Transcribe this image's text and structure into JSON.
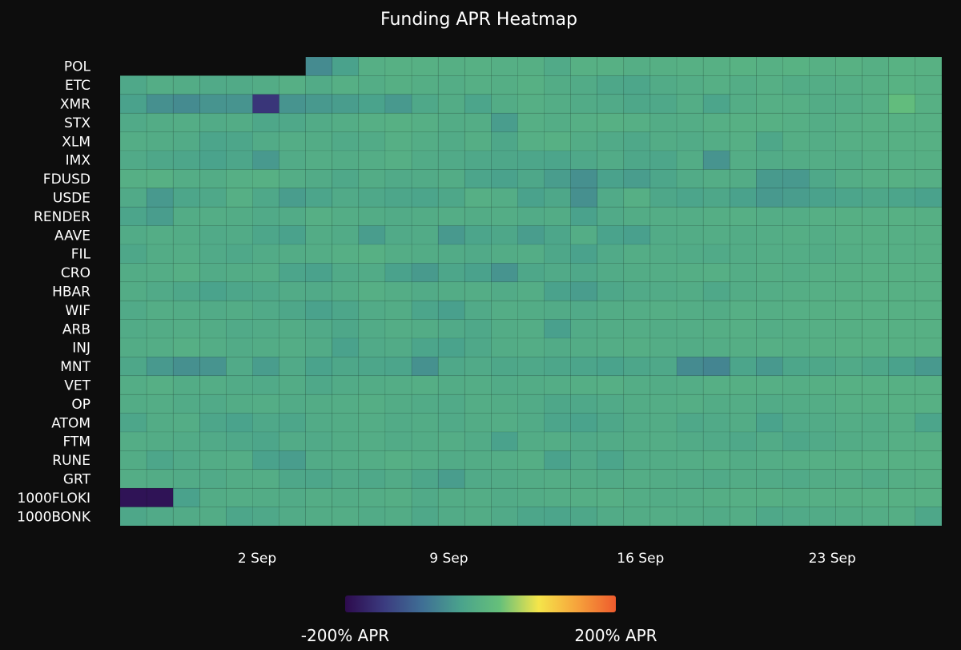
{
  "chart_data": {
    "type": "heatmap",
    "title": "Funding APR Heatmap",
    "x_tick_labels": [
      "2 Sep",
      "9 Sep",
      "16 Sep",
      "23 Sep"
    ],
    "x_start": "2024-08-28",
    "x_end": "2024-09-27",
    "x_ticks": [
      "2024-09-02",
      "2024-09-09",
      "2024-09-16",
      "2024-09-23"
    ],
    "rows": [
      "POL",
      "ETC",
      "XMR",
      "STX",
      "XLM",
      "IMX",
      "FDUSD",
      "USDE",
      "RENDER",
      "AAVE",
      "FIL",
      "CRO",
      "HBAR",
      "WIF",
      "ARB",
      "INJ",
      "MNT",
      "VET",
      "OP",
      "ATOM",
      "FTM",
      "RUNE",
      "GRT",
      "1000FLOKI",
      "1000BONK"
    ],
    "value_range": [
      -200,
      200
    ],
    "colorscale": [
      "#2d0b4d",
      "#3b3b7f",
      "#3f6f95",
      "#4aa38c",
      "#66c07a",
      "#f5e54a",
      "#f6a33c",
      "#ee5b2d"
    ],
    "colorbar_labels": {
      "min": "-200% APR",
      "max": "200% APR"
    },
    "values": [
      [
        null,
        null,
        null,
        null,
        null,
        null,
        null,
        -55,
        -30,
        -5,
        -3,
        -2,
        -4,
        -3,
        -5,
        -4,
        -15,
        -3,
        -2,
        -6,
        -4,
        -3,
        -2,
        0,
        -3,
        0,
        -2,
        -1,
        -4,
        0,
        -1
      ],
      [
        -18,
        -8,
        -10,
        -15,
        -14,
        -10,
        -5,
        -12,
        -5,
        -8,
        -4,
        -6,
        -8,
        -5,
        -6,
        -3,
        -10,
        -12,
        -20,
        -22,
        -12,
        -8,
        -5,
        -8,
        -5,
        -10,
        -8,
        -6,
        -4,
        0,
        -3
      ],
      [
        -30,
        -50,
        -55,
        -45,
        -45,
        -150,
        -45,
        -40,
        -35,
        -28,
        -40,
        -18,
        -10,
        -25,
        -10,
        -5,
        -8,
        -12,
        -15,
        -20,
        -18,
        -8,
        -25,
        -8,
        -5,
        -5,
        -10,
        -8,
        -5,
        20,
        -3
      ],
      [
        -15,
        -10,
        -8,
        -12,
        -10,
        -20,
        -18,
        -12,
        -8,
        -5,
        -3,
        -5,
        -10,
        -8,
        -35,
        -5,
        -8,
        -5,
        -3,
        -5,
        -10,
        -8,
        -5,
        -3,
        -3,
        -5,
        -8,
        -5,
        -3,
        -2,
        -2
      ],
      [
        -8,
        -10,
        -12,
        -25,
        -22,
        -12,
        -8,
        -10,
        -15,
        -12,
        -5,
        -8,
        -12,
        -6,
        -20,
        -5,
        -3,
        -10,
        -15,
        -18,
        -10,
        -12,
        -8,
        -5,
        -20,
        -6,
        -8,
        -5,
        -4,
        -3,
        -3
      ],
      [
        -15,
        -20,
        -22,
        -28,
        -22,
        -40,
        -12,
        -8,
        -10,
        -8,
        -5,
        -12,
        -15,
        -18,
        -20,
        -22,
        -25,
        -18,
        -12,
        -20,
        -22,
        -10,
        -45,
        -8,
        -12,
        -10,
        -8,
        -10,
        -6,
        -5,
        -4
      ],
      [
        -5,
        -3,
        -8,
        -10,
        -5,
        -3,
        -8,
        -12,
        -18,
        -10,
        -15,
        -12,
        -10,
        -25,
        -30,
        -20,
        -35,
        -50,
        -30,
        -35,
        -22,
        -12,
        -8,
        -10,
        -38,
        -40,
        -18,
        -8,
        -5,
        -3,
        -5
      ],
      [
        -15,
        -40,
        -22,
        -18,
        -5,
        -18,
        -35,
        -25,
        -15,
        -18,
        -22,
        -25,
        -20,
        -5,
        -8,
        -30,
        -20,
        -50,
        -15,
        -5,
        -20,
        -25,
        -20,
        -30,
        -40,
        -35,
        -30,
        -25,
        -20,
        -25,
        -30
      ],
      [
        -25,
        -35,
        -10,
        -8,
        -10,
        -15,
        -12,
        -5,
        -8,
        -10,
        -12,
        -10,
        -8,
        -10,
        -8,
        -12,
        -10,
        -30,
        -15,
        -10,
        -8,
        -8,
        -6,
        -5,
        -8,
        -8,
        -5,
        -4,
        -5,
        -3,
        -4
      ],
      [
        -12,
        -8,
        -10,
        -15,
        -12,
        -22,
        -30,
        -10,
        -12,
        -35,
        -15,
        -12,
        -40,
        -25,
        -20,
        -35,
        -22,
        -8,
        -28,
        -32,
        -12,
        -10,
        -8,
        -10,
        -8,
        -6,
        -8,
        -5,
        -4,
        -5,
        -4
      ],
      [
        -20,
        -10,
        -8,
        -15,
        -18,
        -12,
        -10,
        -8,
        -5,
        -3,
        -8,
        -10,
        -12,
        -15,
        -10,
        -8,
        -20,
        -30,
        -15,
        -8,
        -10,
        -12,
        -15,
        -10,
        -8,
        -8,
        -10,
        -6,
        -5,
        -5,
        -4
      ],
      [
        -10,
        -8,
        -5,
        -12,
        -10,
        -8,
        -25,
        -30,
        -15,
        -12,
        -30,
        -38,
        -22,
        -30,
        -45,
        -20,
        -15,
        -18,
        -12,
        -10,
        -8,
        -6,
        -5,
        -8,
        -6,
        -8,
        -5,
        -4,
        -3,
        -3,
        -3
      ],
      [
        -10,
        -15,
        -20,
        -28,
        -22,
        -18,
        -12,
        -15,
        -10,
        -5,
        -8,
        -12,
        -10,
        -8,
        -12,
        -8,
        -30,
        -35,
        -20,
        -15,
        -12,
        -10,
        -18,
        -10,
        -8,
        -6,
        -5,
        -4,
        -3,
        -2,
        -2
      ],
      [
        -15,
        -8,
        -10,
        -12,
        -10,
        -15,
        -20,
        -30,
        -22,
        -12,
        -10,
        -25,
        -32,
        -15,
        -8,
        -10,
        -12,
        -15,
        -10,
        -8,
        -6,
        -8,
        -10,
        -5,
        -6,
        -5,
        -4,
        -3,
        -3,
        -2,
        -2
      ],
      [
        -12,
        -10,
        -8,
        -10,
        -15,
        -12,
        -10,
        -15,
        -20,
        -12,
        -8,
        -10,
        -15,
        -18,
        -10,
        -8,
        -32,
        -12,
        -10,
        -8,
        -10,
        -8,
        -6,
        -5,
        -8,
        -6,
        -5,
        -4,
        -3,
        -3,
        -2
      ],
      [
        -10,
        -8,
        -5,
        -8,
        -12,
        -10,
        -8,
        -12,
        -30,
        -15,
        -12,
        -25,
        -28,
        -18,
        -10,
        -8,
        -12,
        -10,
        -8,
        -6,
        -8,
        -10,
        -8,
        -6,
        -5,
        -6,
        -4,
        -3,
        -2,
        -2,
        -2
      ],
      [
        -20,
        -40,
        -50,
        -45,
        -15,
        -35,
        -15,
        -28,
        -20,
        -22,
        -25,
        -48,
        -18,
        -15,
        -20,
        -18,
        -22,
        -25,
        -28,
        -22,
        -18,
        -55,
        -62,
        -25,
        -40,
        -22,
        -20,
        -15,
        -20,
        -30,
        -40
      ],
      [
        -8,
        -5,
        -10,
        -8,
        -12,
        -15,
        -10,
        -18,
        -12,
        -10,
        -8,
        -6,
        -10,
        -8,
        -12,
        -10,
        -8,
        -6,
        -5,
        -8,
        -10,
        -8,
        -5,
        -4,
        -5,
        -6,
        -4,
        -3,
        -3,
        -2,
        -2
      ],
      [
        -10,
        -8,
        -12,
        -15,
        -10,
        -8,
        -12,
        -10,
        -8,
        -6,
        -10,
        -12,
        -15,
        -8,
        -10,
        -12,
        -20,
        -18,
        -15,
        -10,
        -8,
        -6,
        -10,
        -8,
        -12,
        -10,
        -8,
        -5,
        -4,
        -3,
        -3
      ],
      [
        -22,
        -10,
        -8,
        -22,
        -28,
        -18,
        -22,
        -12,
        -10,
        -8,
        -12,
        -10,
        -15,
        -10,
        -8,
        -12,
        -25,
        -28,
        -20,
        -12,
        -10,
        -18,
        -15,
        -10,
        -28,
        -15,
        -12,
        -8,
        -10,
        -6,
        -25
      ],
      [
        -8,
        -10,
        -12,
        -15,
        -18,
        -22,
        -12,
        -15,
        -10,
        -8,
        -12,
        -10,
        -8,
        -12,
        -30,
        -10,
        -8,
        -15,
        -12,
        -10,
        -8,
        -12,
        -15,
        -18,
        -12,
        -20,
        -15,
        -10,
        -8,
        -5,
        -4
      ],
      [
        -10,
        -22,
        -15,
        -10,
        -8,
        -30,
        -35,
        -12,
        -10,
        -8,
        -5,
        -8,
        -12,
        -10,
        -8,
        -6,
        -30,
        -15,
        -25,
        -12,
        -10,
        -8,
        -6,
        -10,
        -8,
        -6,
        -5,
        -4,
        -3,
        -3,
        -2
      ],
      [
        -8,
        -10,
        -12,
        -15,
        -10,
        -8,
        -20,
        -22,
        -15,
        -18,
        -12,
        -22,
        -35,
        -15,
        -12,
        -10,
        -8,
        -10,
        -12,
        -8,
        -10,
        -12,
        -15,
        -10,
        -12,
        -15,
        -10,
        -8,
        -12,
        -6,
        -4
      ],
      [
        -190,
        -190,
        -30,
        -10,
        -8,
        -10,
        -12,
        -8,
        -10,
        -8,
        -6,
        -15,
        -10,
        -8,
        -12,
        -10,
        -8,
        -6,
        -5,
        -8,
        -10,
        -8,
        -6,
        -5,
        -4,
        -6,
        -5,
        -4,
        -3,
        -3,
        -2
      ],
      [
        -20,
        -15,
        -12,
        -10,
        -22,
        -18,
        -12,
        -10,
        -8,
        -12,
        -10,
        -18,
        -12,
        -10,
        -15,
        -22,
        -25,
        -20,
        -12,
        -10,
        -8,
        -10,
        -12,
        -8,
        -18,
        -15,
        -12,
        -10,
        -8,
        -6,
        -20
      ]
    ]
  }
}
